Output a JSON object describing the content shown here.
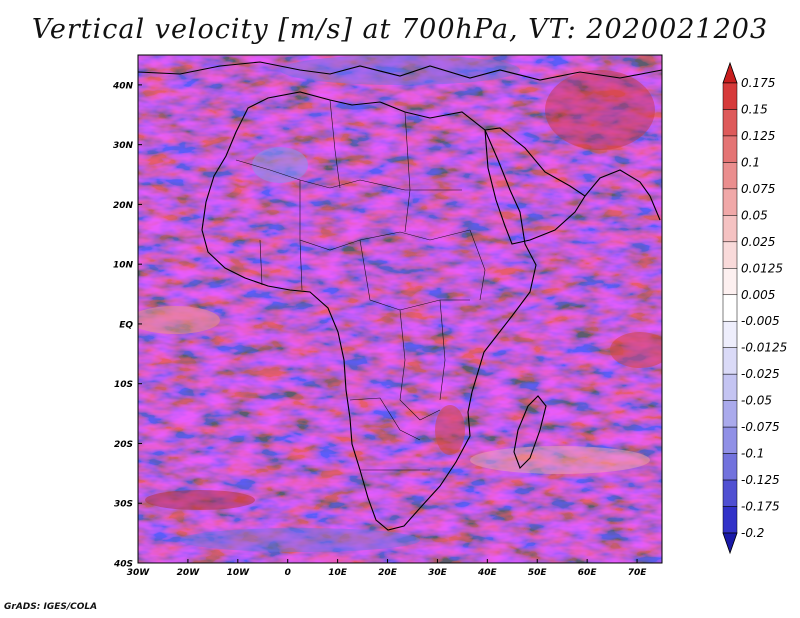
{
  "title": "Vertical velocity [m/s] at 700hPa, VT: 2020021203",
  "footer": "GrADS: IGES/COLA",
  "map": {
    "lat_labels": [
      "40N",
      "30N",
      "20N",
      "10N",
      "EQ",
      "10S",
      "20S",
      "30S",
      "40S"
    ],
    "lon_labels": [
      "30W",
      "20W",
      "10W",
      "0",
      "10E",
      "20E",
      "30E",
      "40E",
      "50E",
      "60E",
      "70E"
    ],
    "region": {
      "lon_min": -30,
      "lon_max": 75,
      "lat_min": -40,
      "lat_max": 45
    }
  },
  "colorbar": {
    "levels": [
      "0.175",
      "0.15",
      "0.125",
      "0.1",
      "0.075",
      "0.05",
      "0.025",
      "0.0125",
      "0.005",
      "-0.005",
      "-0.0125",
      "-0.025",
      "-0.05",
      "-0.075",
      "-0.1",
      "-0.125",
      "-0.175",
      "-0.2"
    ],
    "colors": [
      "#c81e1e",
      "#d63a3a",
      "#de5a5a",
      "#e47474",
      "#ea8e8e",
      "#f0a8a8",
      "#f5c2c2",
      "#f9dada",
      "#fdf0f0",
      "#ffffff",
      "#eeeefc",
      "#dadaf7",
      "#c4c4f2",
      "#aaaaec",
      "#9090e6",
      "#7272dd",
      "#5050d2",
      "#3232c8",
      "#1a1aa8"
    ]
  }
}
